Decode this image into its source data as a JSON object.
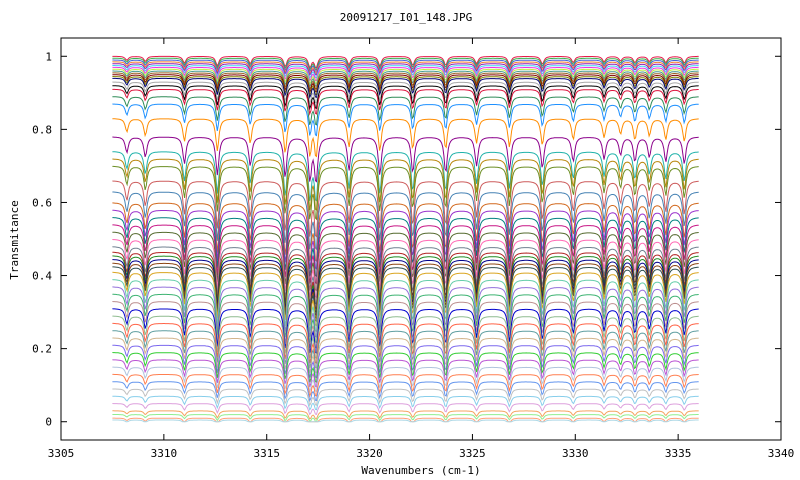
{
  "chart_data": {
    "type": "line",
    "title": "20091217_I01_148.JPG",
    "xlabel": "Wavenumbers (cm-1)",
    "ylabel": "Transmitance",
    "xlim": [
      3305,
      3340
    ],
    "ylim": [
      -0.05,
      1.05
    ],
    "x_ticks": [
      3305,
      3310,
      3315,
      3320,
      3325,
      3330,
      3335,
      3340
    ],
    "x_tick_labels": [
      "3305",
      "3310",
      "3315",
      "3320",
      "3325",
      "3330",
      "3335",
      "3340"
    ],
    "y_ticks": [
      0,
      0.2,
      0.4,
      0.6,
      0.8,
      1
    ],
    "y_tick_labels": [
      "0",
      "0.2",
      "0.4",
      "0.6",
      "0.8",
      "1"
    ],
    "grid": false,
    "legend": "none",
    "x_range": [
      3307.5,
      3336
    ],
    "absorption_lines": [
      {
        "x": 3308.2,
        "depth": 0.35
      },
      {
        "x": 3309.1,
        "depth": 0.45
      },
      {
        "x": 3311.0,
        "depth": 0.6
      },
      {
        "x": 3312.6,
        "depth": 0.85
      },
      {
        "x": 3314.2,
        "depth": 0.65
      },
      {
        "x": 3315.9,
        "depth": 0.9
      },
      {
        "x": 3317.1,
        "depth": 0.95
      },
      {
        "x": 3317.4,
        "depth": 1.0
      },
      {
        "x": 3319.0,
        "depth": 0.75
      },
      {
        "x": 3320.5,
        "depth": 0.85
      },
      {
        "x": 3322.1,
        "depth": 0.8
      },
      {
        "x": 3323.7,
        "depth": 0.8
      },
      {
        "x": 3325.2,
        "depth": 0.65
      },
      {
        "x": 3326.8,
        "depth": 0.75
      },
      {
        "x": 3328.4,
        "depth": 0.7
      },
      {
        "x": 3329.9,
        "depth": 0.55
      },
      {
        "x": 3331.4,
        "depth": 0.5
      },
      {
        "x": 3332.2,
        "depth": 0.4
      },
      {
        "x": 3332.9,
        "depth": 0.55
      },
      {
        "x": 3333.6,
        "depth": 0.45
      },
      {
        "x": 3334.4,
        "depth": 0.55
      },
      {
        "x": 3335.3,
        "depth": 0.6
      }
    ],
    "series_baselines": [
      1.0,
      0.995,
      0.99,
      0.985,
      0.98,
      0.975,
      0.97,
      0.965,
      0.96,
      0.955,
      0.95,
      0.945,
      0.94,
      0.93,
      0.92,
      0.91,
      0.89,
      0.87,
      0.83,
      0.78,
      0.74,
      0.72,
      0.7,
      0.66,
      0.63,
      0.6,
      0.58,
      0.56,
      0.54,
      0.52,
      0.5,
      0.48,
      0.465,
      0.455,
      0.445,
      0.435,
      0.425,
      0.41,
      0.39,
      0.37,
      0.35,
      0.33,
      0.31,
      0.29,
      0.27,
      0.25,
      0.23,
      0.21,
      0.19,
      0.17,
      0.15,
      0.13,
      0.11,
      0.09,
      0.07,
      0.05,
      0.03,
      0.02,
      0.01,
      0.005
    ],
    "series_colors": [
      "#e6194b",
      "#3cb44b",
      "#4363d8",
      "#f58231",
      "#911eb4",
      "#42d4f4",
      "#f032e6",
      "#bfef45",
      "#469990",
      "#9a6324",
      "#800000",
      "#808000",
      "#000075",
      "#a9a9a9",
      "#000000",
      "#dc143c",
      "#2e8b57",
      "#1e90ff",
      "#ff8c00",
      "#8b008b",
      "#20b2aa",
      "#b8860b",
      "#6b8e23",
      "#cd5c5c",
      "#4682b4",
      "#d2691e",
      "#9932cc",
      "#008080",
      "#c71585",
      "#556b2f",
      "#ff69b4",
      "#708090",
      "#b22222",
      "#228b22",
      "#00008b",
      "#8b4513",
      "#2f4f4f",
      "#daa520",
      "#66cdaa",
      "#9370db",
      "#3cb371",
      "#bc8f8f",
      "#0000cd",
      "#8fbc8f",
      "#ff6347",
      "#5f9ea0",
      "#d2b48c",
      "#7b68ee",
      "#32cd32",
      "#ba55d3",
      "#b0c4de",
      "#ff7f50",
      "#6495ed",
      "#c0c0c0",
      "#87ceeb",
      "#dda0dd",
      "#f4a460",
      "#90ee90",
      "#ffa07a",
      "#add8e6"
    ]
  }
}
